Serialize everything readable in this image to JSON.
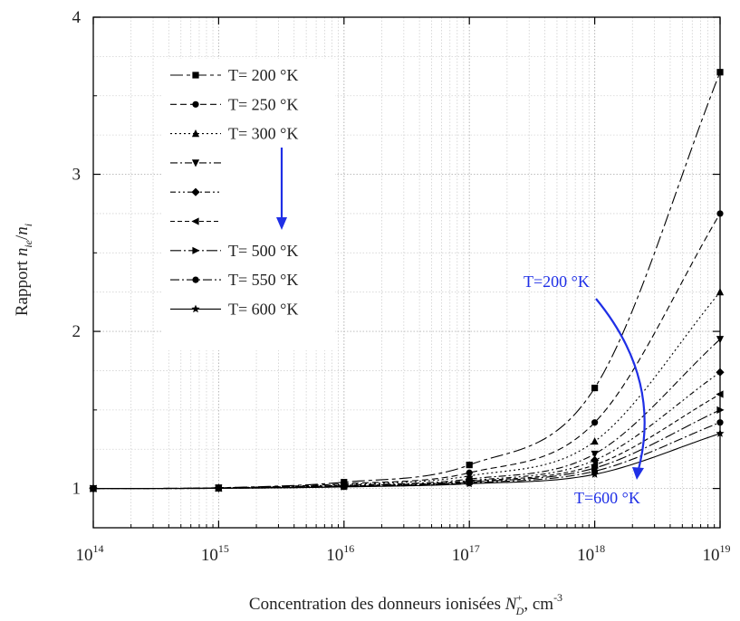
{
  "chart_data": {
    "type": "line",
    "title": "",
    "xlabel_main": "Concentration des donneurs ionisées ",
    "xlabel_var": "N",
    "xlabel_sup": "+",
    "xlabel_sub": "D",
    "xlabel_unit": ", cm",
    "xlabel_unit_exp": "-3",
    "ylabel_main": "Rapport ",
    "ylabel_num": "n",
    "ylabel_num_sub": "ie",
    "ylabel_slash": "/",
    "ylabel_den": "n",
    "ylabel_den_sub": "i",
    "x_scale": "log",
    "xlim": [
      100000000000000.0,
      1e+19
    ],
    "ylim": [
      0.75,
      4
    ],
    "x_tick_base": "10",
    "x_ticks": [
      {
        "exp": "14"
      },
      {
        "exp": "15"
      },
      {
        "exp": "16"
      },
      {
        "exp": "17"
      },
      {
        "exp": "18"
      },
      {
        "exp": "19"
      }
    ],
    "y_ticks": [
      "1",
      "2",
      "3",
      "4"
    ],
    "grid": true,
    "legend_position": "top-left",
    "x": [
      100000000000000.0,
      1000000000000000.0,
      1e+16,
      1e+17,
      1e+18,
      1e+19
    ],
    "series": [
      {
        "name": "T= 200 °K",
        "marker": "square",
        "dash": "14 4 4 4",
        "values": [
          1.0,
          1.005,
          1.04,
          1.15,
          1.64,
          3.65
        ]
      },
      {
        "name": "T= 250 °K",
        "marker": "circle",
        "dash": "7 4",
        "values": [
          1.0,
          1.004,
          1.03,
          1.1,
          1.42,
          2.75
        ]
      },
      {
        "name": "T= 300 °K",
        "marker": "triangle-up",
        "dash": "2 3",
        "values": [
          1.0,
          1.003,
          1.025,
          1.08,
          1.3,
          2.25
        ]
      },
      {
        "name": "",
        "marker": "triangle-down",
        "dash": "8 3 2 3",
        "values": [
          1.0,
          1.003,
          1.02,
          1.06,
          1.22,
          1.95
        ]
      },
      {
        "name": "",
        "marker": "diamond",
        "dash": "6 3 2 3 2 3",
        "values": [
          1.0,
          1.002,
          1.018,
          1.05,
          1.18,
          1.74
        ]
      },
      {
        "name": "",
        "marker": "triangle-left",
        "dash": "5 3",
        "values": [
          1.0,
          1.002,
          1.015,
          1.045,
          1.15,
          1.6
        ]
      },
      {
        "name": "T= 500 °K",
        "marker": "triangle-right",
        "dash": "12 3 2 3",
        "values": [
          1.0,
          1.002,
          1.013,
          1.04,
          1.13,
          1.5
        ]
      },
      {
        "name": "T= 550 °K",
        "marker": "circle",
        "dash": "10 3 2 3",
        "values": [
          1.0,
          1.001,
          1.011,
          1.035,
          1.11,
          1.42
        ]
      },
      {
        "name": "T= 600 °K",
        "marker": "star",
        "dash": "",
        "values": [
          1.0,
          1.001,
          1.01,
          1.03,
          1.09,
          1.35
        ]
      }
    ],
    "annotations": {
      "top_label": "T=200 °K",
      "bottom_label": "T=600 °K",
      "arrow_color": "#1f2fe6"
    }
  }
}
